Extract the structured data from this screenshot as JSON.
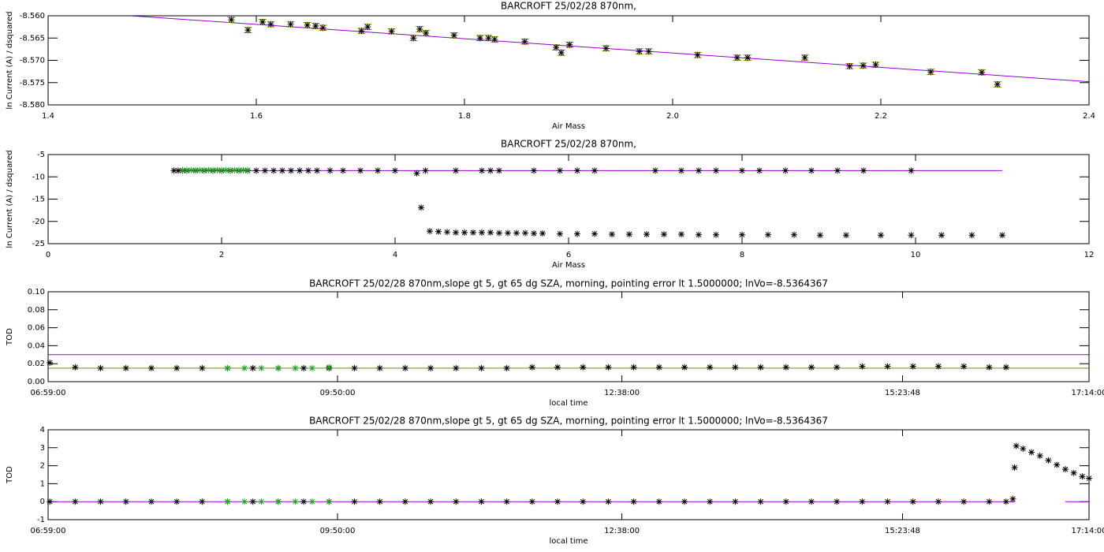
{
  "chart_data": [
    {
      "type": "scatter",
      "title": "BARCROFT 25/02/28 870nm,",
      "xlabel": "Air Mass",
      "ylabel": "ln Current (A) / dsquared",
      "xlim": [
        1.4,
        2.4
      ],
      "xticks": [
        1.4,
        1.6,
        1.8,
        {
          "value": 2,
          "label": "2.0"
        },
        2.2,
        2.4
      ],
      "ylim": [
        -8.58,
        -8.56
      ],
      "yticks": [
        {
          "value": -8.58,
          "label": "-8.580"
        },
        {
          "value": -8.575,
          "label": "-8.575"
        },
        {
          "value": -8.57,
          "label": "-8.570"
        },
        {
          "value": -8.565,
          "label": "-8.565"
        },
        {
          "value": -8.56,
          "label": "-8.560"
        }
      ],
      "series": [
        {
          "style": "line",
          "color": "#9400d3",
          "x": [
            1.48,
            2.4
          ],
          "values": [
            -8.56,
            -8.5748
          ]
        },
        {
          "style": "star",
          "color": "#000000",
          "error_color": "#8b8b00",
          "x": [
            1.576,
            1.592,
            1.606,
            1.614,
            1.633,
            1.649,
            1.657,
            1.664,
            1.701,
            1.707,
            1.73,
            1.751,
            1.757,
            1.763,
            1.79,
            1.815,
            1.823,
            1.829,
            1.858,
            1.888,
            1.893,
            1.901,
            1.936,
            1.968,
            1.977,
            2.024,
            2.062,
            2.072,
            2.127,
            2.17,
            2.183,
            2.195,
            2.248,
            2.297,
            2.312
          ],
          "values": [
            -8.5609,
            -8.5632,
            -8.5614,
            -8.5619,
            -8.5619,
            -8.5621,
            -8.5623,
            -8.5627,
            -8.5634,
            -8.5625,
            -8.5635,
            -8.565,
            -8.563,
            -8.5639,
            -8.5644,
            -8.565,
            -8.565,
            -8.5653,
            -8.5658,
            -8.5671,
            -8.5683,
            -8.5665,
            -8.5673,
            -8.568,
            -8.568,
            -8.5688,
            -8.5694,
            -8.5694,
            -8.5694,
            -8.5713,
            -8.5712,
            -8.571,
            -8.5726,
            -8.5727,
            -8.5754
          ],
          "errors": [
            0.0006,
            0.0006,
            0.0006,
            0.0006,
            0.0006,
            0.0006,
            0.0006,
            0.0006,
            0.0006,
            0.0006,
            0.0006,
            0.0006,
            0.0006,
            0.0006,
            0.0006,
            0.0006,
            0.0006,
            0.0006,
            0.0006,
            0.0006,
            0.0006,
            0.0006,
            0.0006,
            0.0006,
            0.0006,
            0.0006,
            0.0006,
            0.0006,
            0.0006,
            0.0006,
            0.0006,
            0.0006,
            0.0006,
            0.0006,
            0.0006
          ]
        }
      ]
    },
    {
      "type": "scatter",
      "title": "BARCROFT 25/02/28 870nm,",
      "xlabel": "Air Mass",
      "ylabel": "ln Current (A) / dsquared",
      "xlim": [
        0,
        12
      ],
      "xticks": [
        0,
        2,
        4,
        6,
        8,
        10,
        12
      ],
      "ylim": [
        -25,
        -5
      ],
      "yticks": [
        -25,
        -20,
        -15,
        -10,
        -5
      ],
      "series": [
        {
          "style": "line",
          "color": "#9400d3",
          "x": [
            1.45,
            11.0
          ],
          "values": [
            -8.6,
            -8.6
          ]
        },
        {
          "style": "star",
          "color": "#000000",
          "x": [
            1.45,
            1.5,
            1.55,
            1.6,
            1.7,
            1.8,
            1.9,
            2.0,
            2.1,
            2.2,
            2.3,
            2.4,
            2.5,
            2.6,
            2.7,
            2.8,
            2.9,
            3.0,
            3.1,
            3.25,
            3.4,
            3.6,
            3.8,
            4.0,
            4.25,
            4.3,
            4.35,
            4.7,
            5.0,
            5.1,
            5.2,
            5.6,
            5.9,
            6.1,
            6.3,
            7.0,
            7.3,
            7.5,
            7.7,
            8.0,
            8.2,
            8.5,
            8.8,
            9.1,
            9.4,
            9.95
          ],
          "values": [
            -8.6,
            -8.6,
            -8.6,
            -8.6,
            -8.6,
            -8.6,
            -8.6,
            -8.6,
            -8.6,
            -8.6,
            -8.6,
            -8.6,
            -8.6,
            -8.6,
            -8.6,
            -8.6,
            -8.6,
            -8.6,
            -8.6,
            -8.6,
            -8.6,
            -8.6,
            -8.6,
            -8.6,
            -9.2,
            -16.9,
            -8.6,
            -8.6,
            -8.6,
            -8.6,
            -8.6,
            -8.6,
            -8.6,
            -8.6,
            -8.6,
            -8.6,
            -8.6,
            -8.6,
            -8.6,
            -8.6,
            -8.6,
            -8.6,
            -8.6,
            -8.6,
            -8.6,
            -8.6
          ]
        },
        {
          "style": "star",
          "color": "#000000",
          "x": [
            4.4,
            4.5,
            4.6,
            4.7,
            4.8,
            4.9,
            5.0,
            5.1,
            5.2,
            5.3,
            5.4,
            5.5,
            5.6,
            5.7,
            5.9,
            6.1,
            6.3,
            6.5,
            6.7,
            6.9,
            7.1,
            7.3,
            7.5,
            7.7,
            8.0,
            8.3,
            8.6,
            8.9,
            9.2,
            9.6,
            9.95,
            10.3,
            10.65,
            11.0
          ],
          "values": [
            -22.2,
            -22.3,
            -22.4,
            -22.5,
            -22.5,
            -22.5,
            -22.5,
            -22.5,
            -22.6,
            -22.6,
            -22.6,
            -22.6,
            -22.7,
            -22.7,
            -22.8,
            -22.8,
            -22.8,
            -22.9,
            -22.9,
            -22.9,
            -22.9,
            -22.9,
            -23.0,
            -23.0,
            -23.0,
            -23.0,
            -23.0,
            -23.1,
            -23.1,
            -23.1,
            -23.1,
            -23.1,
            -23.1,
            -23.1
          ]
        },
        {
          "style": "star",
          "color": "#22a022",
          "x": [
            1.55,
            1.6,
            1.65,
            1.7,
            1.75,
            1.8,
            1.85,
            1.9,
            1.95,
            2.0,
            2.05,
            2.1,
            2.15,
            2.2,
            2.25,
            2.3
          ],
          "values": [
            -8.5,
            -8.5,
            -8.5,
            -8.5,
            -8.5,
            -8.5,
            -8.5,
            -8.5,
            -8.5,
            -8.5,
            -8.5,
            -8.5,
            -8.5,
            -8.5,
            -8.5,
            -8.5
          ]
        }
      ]
    },
    {
      "type": "scatter",
      "title": "BARCROFT 25/02/28 870nm,slope gt 5, gt 65 dg SZA, morning, pointing error lt 1.5000000; lnVo=-8.5364367",
      "xlabel": "local time",
      "ylabel": "TOD",
      "xlim": [
        "06:59:00",
        "17:14:00"
      ],
      "xticks": [
        "06:59:00",
        "09:50:00",
        "12:38:00",
        "15:23:48",
        "17:14:00"
      ],
      "ylim": [
        0,
        0.1
      ],
      "yticks": [
        {
          "value": 0,
          "label": "0.00"
        },
        {
          "value": 0.02,
          "label": "0.02"
        },
        {
          "value": 0.04,
          "label": "0.04"
        },
        {
          "value": 0.06,
          "label": "0.06"
        },
        {
          "value": 0.08,
          "label": "0.08"
        },
        {
          "value": 0.1,
          "label": "0.10"
        }
      ],
      "series": [
        {
          "style": "line",
          "color": "#9400d3",
          "x": [
            "06:59:00",
            "17:14:00"
          ],
          "values": [
            0.03,
            0.03
          ]
        },
        {
          "style": "line",
          "color": "#6b8e23",
          "x": [
            "06:59:00",
            "17:14:00"
          ],
          "values": [
            0.015,
            0.015
          ]
        },
        {
          "style": "star",
          "color": "#000000",
          "x": [
            "07:00:00",
            "07:15:00",
            "07:30:00",
            "07:45:00",
            "08:00:00",
            "08:15:00",
            "08:30:00",
            "08:45:00",
            "09:00:00",
            "09:15:00",
            "09:30:00",
            "09:45:00",
            "10:00:00",
            "10:15:00",
            "10:30:00",
            "10:45:00",
            "11:00:00",
            "11:15:00",
            "11:30:00",
            "11:45:00",
            "12:00:00",
            "12:15:00",
            "12:30:00",
            "12:45:00",
            "13:00:00",
            "13:15:00",
            "13:30:00",
            "13:45:00",
            "14:00:00",
            "14:15:00",
            "14:30:00",
            "14:45:00",
            "15:00:00",
            "15:15:00",
            "15:30:00",
            "15:45:00",
            "16:00:00",
            "16:15:00",
            "16:25:00"
          ],
          "values": [
            0.021,
            0.016,
            0.015,
            0.015,
            0.015,
            0.015,
            0.015,
            0.015,
            0.015,
            0.015,
            0.015,
            0.015,
            0.015,
            0.015,
            0.015,
            0.015,
            0.015,
            0.015,
            0.015,
            0.016,
            0.016,
            0.016,
            0.016,
            0.016,
            0.016,
            0.016,
            0.016,
            0.016,
            0.016,
            0.016,
            0.016,
            0.016,
            0.017,
            0.017,
            0.017,
            0.017,
            0.017,
            0.016,
            0.016
          ]
        },
        {
          "style": "star",
          "color": "#22a022",
          "x": [
            "08:45:00",
            "08:55:00",
            "09:05:00",
            "09:15:00",
            "09:25:00",
            "09:35:00",
            "09:45:00"
          ],
          "values": [
            0.015,
            0.015,
            0.015,
            0.015,
            0.015,
            0.015,
            0.016
          ]
        }
      ]
    },
    {
      "type": "scatter",
      "title": "BARCROFT 25/02/28 870nm,slope gt 5, gt 65 dg SZA, morning, pointing error lt 1.5000000; lnVo=-8.5364367",
      "xlabel": "local time",
      "ylabel": "TOD",
      "xlim": [
        "06:59:00",
        "17:14:00"
      ],
      "xticks": [
        "06:59:00",
        "09:50:00",
        "12:38:00",
        "15:23:48",
        "17:14:00"
      ],
      "ylim": [
        -1,
        4
      ],
      "yticks": [
        -1,
        0,
        1,
        2,
        3,
        4
      ],
      "series": [
        {
          "style": "line",
          "color": "#9400d3",
          "x": [
            "06:59:00",
            "16:30:00",
            "16:45:00",
            "17:00:00",
            "17:14:00"
          ],
          "values": [
            0,
            0,
            null,
            0,
            0
          ]
        },
        {
          "style": "star",
          "color": "#000000",
          "x": [
            "07:00:00",
            "07:15:00",
            "07:30:00",
            "07:45:00",
            "08:00:00",
            "08:15:00",
            "08:30:00",
            "08:45:00",
            "09:00:00",
            "09:15:00",
            "09:30:00",
            "09:45:00",
            "10:00:00",
            "10:15:00",
            "10:30:00",
            "10:45:00",
            "11:00:00",
            "11:15:00",
            "11:30:00",
            "11:45:00",
            "12:00:00",
            "12:15:00",
            "12:30:00",
            "12:45:00",
            "13:00:00",
            "13:15:00",
            "13:30:00",
            "13:45:00",
            "14:00:00",
            "14:15:00",
            "14:30:00",
            "14:45:00",
            "15:00:00",
            "15:15:00",
            "15:30:00",
            "15:45:00",
            "16:00:00",
            "16:15:00",
            "16:25:00",
            "16:29:00",
            "16:30:00",
            "16:31:00",
            "16:35:00",
            "16:40:00",
            "16:45:00",
            "16:50:00",
            "16:55:00",
            "17:00:00",
            "17:05:00",
            "17:10:00",
            "17:14:00"
          ],
          "values": [
            0,
            0,
            0,
            0,
            0,
            0,
            0,
            0,
            0,
            0,
            0,
            0,
            0,
            0,
            0,
            0,
            0,
            0,
            0,
            0,
            0,
            0,
            0,
            0,
            0,
            0,
            0,
            0,
            0,
            0,
            0,
            0,
            0,
            0,
            0,
            0,
            0,
            0,
            0,
            0.15,
            1.9,
            3.1,
            2.95,
            2.75,
            2.55,
            2.3,
            2.05,
            1.8,
            1.6,
            1.4,
            1.3
          ]
        },
        {
          "style": "star",
          "color": "#22a022",
          "x": [
            "08:45:00",
            "08:55:00",
            "09:05:00",
            "09:15:00",
            "09:25:00",
            "09:35:00",
            "09:45:00"
          ],
          "values": [
            0,
            0,
            0,
            0,
            0,
            0,
            0
          ]
        }
      ]
    }
  ]
}
